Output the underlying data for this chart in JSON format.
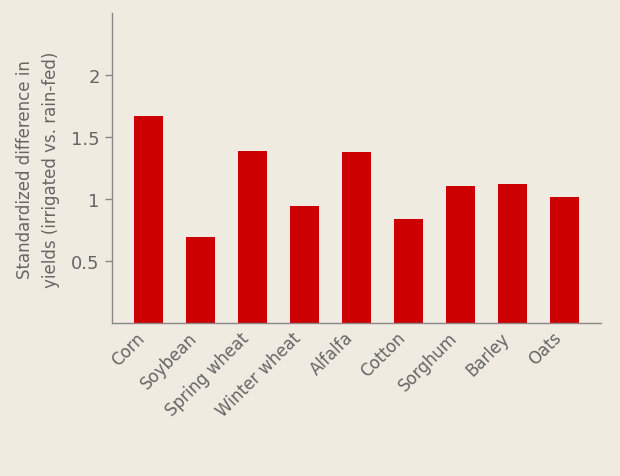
{
  "categories": [
    "Corn",
    "Soybean",
    "Spring wheat",
    "Winter wheat",
    "Alfalfa",
    "Cotton",
    "Sorghum",
    "Barley",
    "Oats"
  ],
  "values": [
    1.67,
    0.7,
    1.39,
    0.95,
    1.38,
    0.84,
    1.11,
    1.12,
    1.02
  ],
  "bar_color": "#cc0000",
  "background_color": "#f0ebe0",
  "ylabel": "Standardized difference in\nyields (irrigated vs. rain-fed)",
  "ylim": [
    0,
    2.5
  ],
  "yticks": [
    0.5,
    1.0,
    1.5,
    2.0
  ],
  "ytick_labels": [
    "0.5",
    "1",
    "1.5",
    "2"
  ],
  "tick_label_color": "#666666",
  "axis_label_color": "#666666",
  "spine_color": "#888888",
  "bar_width": 0.55,
  "tick_label_fontsize": 13,
  "ylabel_fontsize": 12,
  "xlabel_fontsize": 12
}
